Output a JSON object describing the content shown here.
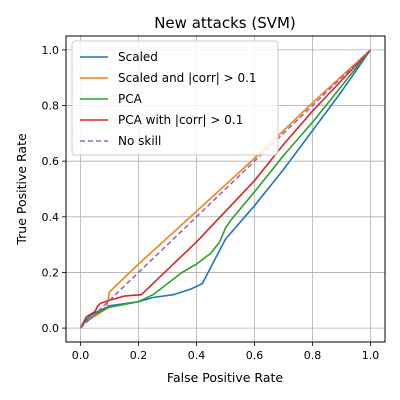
{
  "chart_data": {
    "type": "line",
    "title": "New attacks (SVM)",
    "xlabel": "False Positive Rate",
    "ylabel": "True Positive Rate",
    "xlim": [
      -0.05,
      1.05
    ],
    "ylim": [
      -0.05,
      1.05
    ],
    "xticks": [
      "0.0",
      "0.2",
      "0.4",
      "0.6",
      "0.8",
      "1.0"
    ],
    "yticks": [
      "0.0",
      "0.2",
      "0.4",
      "0.6",
      "0.8",
      "1.0"
    ],
    "grid": true,
    "legend_position": "upper-left",
    "series": [
      {
        "name": "Scaled",
        "color": "#1f77b4",
        "dash": false,
        "points": [
          [
            0,
            0
          ],
          [
            0.01,
            0.02
          ],
          [
            0.02,
            0.03
          ],
          [
            0.04,
            0.05
          ],
          [
            0.06,
            0.06
          ],
          [
            0.1,
            0.08
          ],
          [
            0.2,
            0.095
          ],
          [
            0.25,
            0.11
          ],
          [
            0.32,
            0.12
          ],
          [
            0.38,
            0.14
          ],
          [
            0.42,
            0.16
          ],
          [
            0.44,
            0.2
          ],
          [
            0.47,
            0.26
          ],
          [
            0.5,
            0.32
          ],
          [
            0.6,
            0.44
          ],
          [
            0.7,
            0.57
          ],
          [
            0.8,
            0.71
          ],
          [
            0.9,
            0.85
          ],
          [
            1.0,
            1.0
          ]
        ]
      },
      {
        "name": "Scaled and |corr| > 0.1",
        "color": "#ff7f0e",
        "dash": false,
        "points": [
          [
            0,
            0
          ],
          [
            0.01,
            0.015
          ],
          [
            0.03,
            0.03
          ],
          [
            0.06,
            0.05
          ],
          [
            0.09,
            0.07
          ],
          [
            0.1,
            0.13
          ],
          [
            0.2,
            0.23
          ],
          [
            0.4,
            0.42
          ],
          [
            0.6,
            0.61
          ],
          [
            0.8,
            0.81
          ],
          [
            1.0,
            1.0
          ]
        ]
      },
      {
        "name": "PCA",
        "color": "#2ca02c",
        "dash": false,
        "points": [
          [
            0,
            0
          ],
          [
            0.01,
            0.02
          ],
          [
            0.03,
            0.03
          ],
          [
            0.05,
            0.05
          ],
          [
            0.1,
            0.075
          ],
          [
            0.2,
            0.095
          ],
          [
            0.25,
            0.12
          ],
          [
            0.3,
            0.16
          ],
          [
            0.35,
            0.2
          ],
          [
            0.4,
            0.23
          ],
          [
            0.45,
            0.27
          ],
          [
            0.48,
            0.31
          ],
          [
            0.5,
            0.36
          ],
          [
            0.52,
            0.39
          ],
          [
            0.6,
            0.49
          ],
          [
            0.7,
            0.62
          ],
          [
            0.8,
            0.74
          ],
          [
            0.9,
            0.87
          ],
          [
            1.0,
            1.0
          ]
        ]
      },
      {
        "name": "PCA with |corr| > 0.1",
        "color": "#d62728",
        "dash": false,
        "points": [
          [
            0,
            0
          ],
          [
            0.01,
            0.02
          ],
          [
            0.02,
            0.04
          ],
          [
            0.05,
            0.06
          ],
          [
            0.06,
            0.08
          ],
          [
            0.07,
            0.09
          ],
          [
            0.1,
            0.1
          ],
          [
            0.15,
            0.115
          ],
          [
            0.21,
            0.12
          ],
          [
            0.3,
            0.21
          ],
          [
            0.4,
            0.31
          ],
          [
            0.5,
            0.42
          ],
          [
            0.6,
            0.53
          ],
          [
            0.7,
            0.66
          ],
          [
            0.8,
            0.78
          ],
          [
            0.9,
            0.89
          ],
          [
            1.0,
            1.0
          ]
        ]
      },
      {
        "name": "No skill",
        "color": "#9467bd",
        "dash": true,
        "points": [
          [
            0,
            0
          ],
          [
            1,
            1
          ]
        ]
      }
    ]
  }
}
